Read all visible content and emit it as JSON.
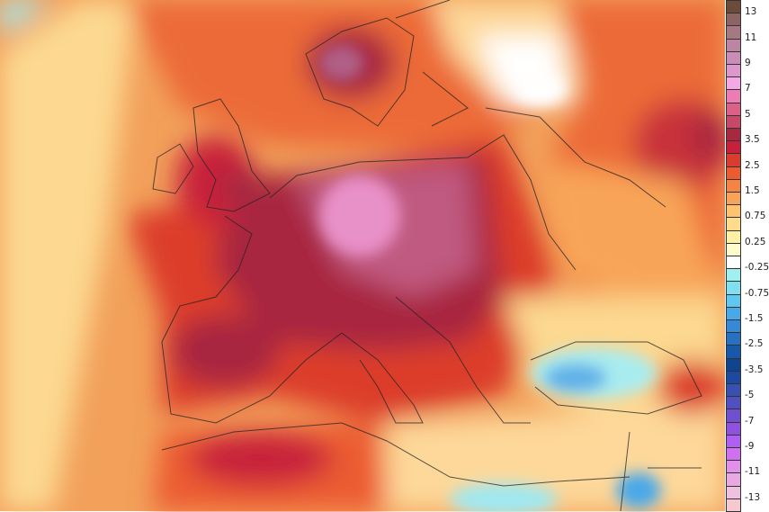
{
  "colorbar": {
    "labels": [
      "13",
      "11",
      "9",
      "7",
      "5",
      "3.5",
      "2.5",
      "1.5",
      "0.75",
      "0.25",
      "-0.25",
      "-0.75",
      "-1.5",
      "-2.5",
      "-3.5",
      "-5",
      "-7",
      "-9",
      "-11",
      "-13"
    ],
    "colors": [
      "#6b4c38",
      "#8c6464",
      "#a67882",
      "#bc86a2",
      "#cc8cb8",
      "#dc98cc",
      "#f4a8e4",
      "#ec7cb4",
      "#dc6088",
      "#c84868",
      "#a82840",
      "#c8203a",
      "#dc3c2c",
      "#ec5c30",
      "#f48444",
      "#f8a458",
      "#fcc470",
      "#fedc8c",
      "#fff0a8",
      "#fffccc",
      "#ffffff",
      "#a0f0f0",
      "#80e0f0",
      "#60c8f0",
      "#48a8e8",
      "#3888d8",
      "#2870c0",
      "#1858a8",
      "#104490",
      "#1c4aa0",
      "#3850b0",
      "#5050c0",
      "#7050d0",
      "#9050e0",
      "#b060f0",
      "#d070f0",
      "#e090e8",
      "#e8a8e0",
      "#f0c0e0",
      "#f8c8d0"
    ]
  },
  "map": {
    "region": "Europe",
    "dominant_anomaly_color": "#e8642c",
    "max_anomaly_color": "#e890c8",
    "cold_anomaly_color": "#60c8f0"
  }
}
